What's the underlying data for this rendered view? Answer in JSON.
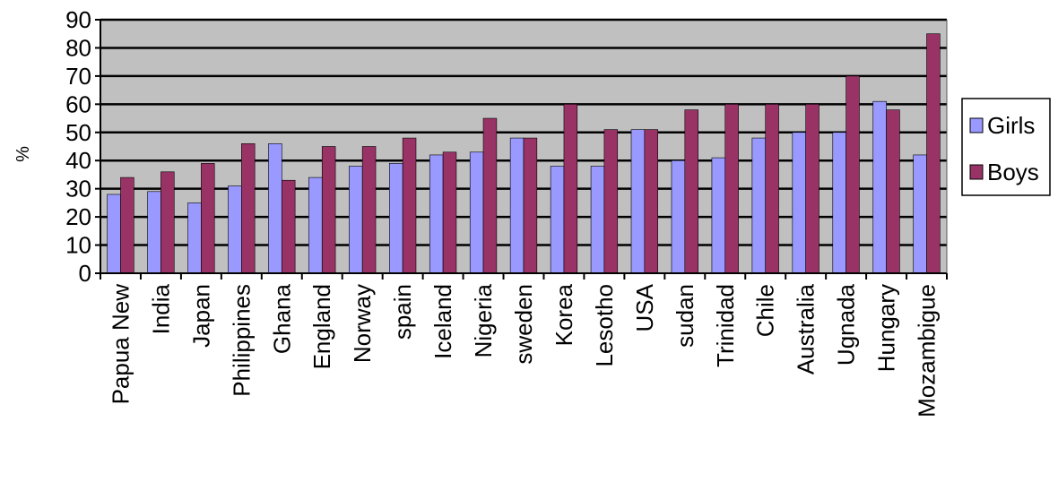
{
  "chart_data": {
    "type": "bar",
    "title": "",
    "xlabel": "",
    "ylabel": "%",
    "ylim": [
      0,
      90
    ],
    "yticks": [
      0,
      10,
      20,
      30,
      40,
      50,
      60,
      70,
      80,
      90
    ],
    "grid": true,
    "legend_position": "right",
    "plot_background": "#c0c0c0",
    "categories": [
      "Papua New",
      "India",
      "Japan",
      "Philippines",
      "Ghana",
      "England",
      "Norway",
      "spain",
      "Iceland",
      "Nigeria",
      "sweden",
      "Korea",
      "Lesotho",
      "USA",
      "sudan",
      "Trinidad",
      "Chile",
      "Australia",
      "Ugnada",
      "Hungary",
      "Mozambigue"
    ],
    "series": [
      {
        "name": "Girls",
        "color": "#9999ff",
        "values": [
          28,
          29,
          25,
          31,
          46,
          34,
          38,
          39,
          42,
          43,
          48,
          38,
          38,
          51,
          40,
          41,
          48,
          50,
          50,
          61,
          42
        ]
      },
      {
        "name": "Boys",
        "color": "#993366",
        "values": [
          34,
          36,
          39,
          46,
          33,
          45,
          45,
          48,
          43,
          55,
          48,
          60,
          51,
          51,
          58,
          60,
          60,
          60,
          70,
          58,
          85
        ]
      }
    ]
  }
}
